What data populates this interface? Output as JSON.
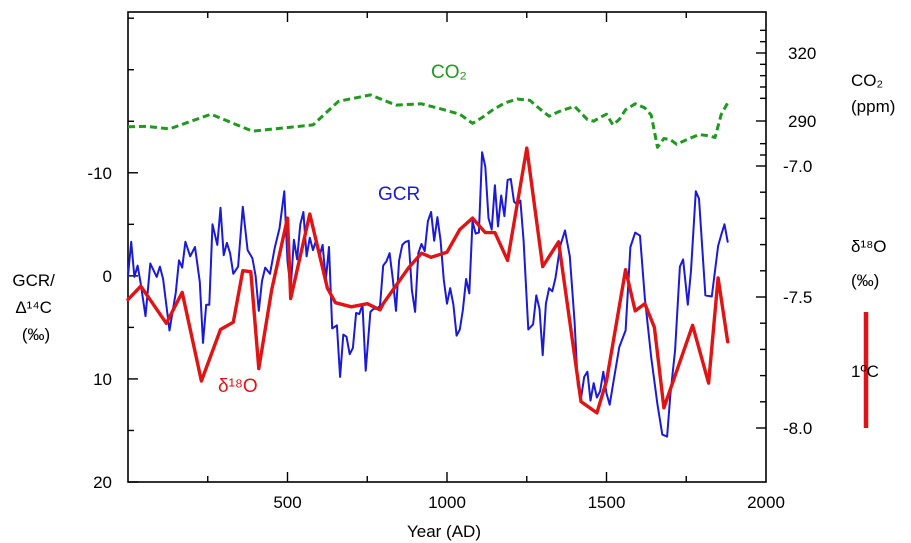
{
  "chart_data": {
    "type": "line",
    "x_axis": {
      "label": "Year (AD)",
      "range": [
        0,
        2000
      ],
      "ticks": [
        500,
        1000,
        1500,
        2000
      ],
      "tick_labels": [
        "500",
        "1000",
        "1500",
        "2000"
      ],
      "minor_step": 250
    },
    "left_axis": {
      "label_lines": [
        "GCR/",
        "Δ¹⁴C",
        "(‰)"
      ],
      "range": [
        20,
        -25.6
      ],
      "inverted": true,
      "ticks": [
        -10,
        0,
        10,
        20
      ],
      "tick_labels": [
        "-10",
        "0",
        "10",
        "20"
      ],
      "minor_step": 5
    },
    "right_axis_co2": {
      "label_lines": [
        "CO₂",
        "(ppm)"
      ],
      "ticks": [
        290,
        320
      ],
      "tick_labels": [
        "290",
        "320"
      ],
      "minor_ticks": [
        275,
        280,
        300,
        305,
        310,
        315,
        325,
        330
      ]
    },
    "right_axis_d18o": {
      "label_lines": [
        "δ¹⁸O",
        "(‰)"
      ],
      "ticks": [
        -8.0,
        -7.5,
        -7.0
      ],
      "tick_labels": [
        "-8.0",
        "-7.5",
        "-7.0"
      ],
      "minor_ticks": [
        -7.9,
        -7.8,
        -7.7,
        -7.6,
        -7.4,
        -7.3,
        -7.2,
        -7.1
      ]
    },
    "scale_bar": {
      "label": "1ºC"
    },
    "series": [
      {
        "name": "GCR",
        "inline_label": "GCR",
        "color": "#1a1ad8",
        "style": "solid",
        "axis": "left",
        "x": [
          0,
          10,
          20,
          30,
          40,
          55,
          70,
          90,
          100,
          110,
          130,
          150,
          160,
          170,
          180,
          195,
          210,
          225,
          235,
          245,
          255,
          265,
          280,
          290,
          300,
          310,
          320,
          330,
          345,
          360,
          375,
          390,
          400,
          410,
          420,
          430,
          445,
          460,
          475,
          490,
          500,
          510,
          520,
          530,
          540,
          550,
          560,
          570,
          580,
          590,
          600,
          610,
          620,
          630,
          640,
          655,
          665,
          675,
          685,
          695,
          705,
          715,
          725,
          735,
          745,
          760,
          770,
          780,
          790,
          800,
          810,
          820,
          830,
          840,
          850,
          860,
          870,
          880,
          890,
          900,
          910,
          920,
          930,
          940,
          950,
          960,
          970,
          980,
          990,
          1000,
          1010,
          1020,
          1030,
          1040,
          1050,
          1060,
          1070,
          1080,
          1090,
          1100,
          1110,
          1120,
          1130,
          1140,
          1150,
          1160,
          1170,
          1180,
          1190,
          1200,
          1210,
          1220,
          1230,
          1240,
          1255,
          1270,
          1280,
          1290,
          1300,
          1310,
          1320,
          1330,
          1340,
          1355,
          1370,
          1385,
          1400,
          1410,
          1420,
          1430,
          1440,
          1450,
          1460,
          1470,
          1480,
          1490,
          1500,
          1510,
          1520,
          1540,
          1560,
          1575,
          1590,
          1605,
          1620,
          1640,
          1660,
          1675,
          1690,
          1700,
          1715,
          1730,
          1740,
          1755,
          1765,
          1780,
          1790,
          1810,
          1830,
          1850,
          1860,
          1870,
          1880
        ],
        "values": [
          0,
          -3.3,
          0.1,
          -1,
          0.8,
          3.9,
          -1.2,
          0.1,
          -0.9,
          0.3,
          5.3,
          1.6,
          -1.5,
          -0.8,
          -3.3,
          -1.9,
          -2.8,
          0.6,
          6.5,
          2.8,
          2.8,
          -5,
          -3,
          -6.6,
          -2,
          -3.2,
          -2.2,
          -0.2,
          -0.9,
          -6.7,
          -2.5,
          -1.7,
          0,
          3.4,
          0.5,
          -0.8,
          -0.2,
          -2.7,
          -4.6,
          -8.2,
          -1.4,
          1.2,
          -3.5,
          -1.6,
          -5,
          -6.2,
          -1.9,
          -3.7,
          -2.5,
          -3.5,
          -1.9,
          -3,
          0.4,
          -2.8,
          5.1,
          4.8,
          9.8,
          5.7,
          5.9,
          7.6,
          7,
          3.6,
          3.7,
          2.8,
          9.2,
          3.5,
          3.2,
          3.2,
          2.9,
          -1,
          -1.4,
          -2.2,
          0.3,
          3.4,
          -1.5,
          -3,
          -3.3,
          -3.4,
          1.4,
          3.5,
          -2.2,
          -3.1,
          -2.4,
          -5.3,
          -6.2,
          -3.4,
          -5.7,
          -3.4,
          0.4,
          2.7,
          1.2,
          2.8,
          5.8,
          5.2,
          3.3,
          0.3,
          1.7,
          -5.3,
          -4.1,
          -4.2,
          -12,
          -10.6,
          -5.6,
          -4.5,
          -8.8,
          -4.8,
          -7.8,
          -5.8,
          -9.3,
          -9.4,
          -7.2,
          -6.9,
          -7.3,
          -3.4,
          5.2,
          4.7,
          1.9,
          3.2,
          7.7,
          2.7,
          1.2,
          1.5,
          0.2,
          -2.9,
          -4.4,
          -1.9,
          4.5,
          10.6,
          11.9,
          9.8,
          9.3,
          12.1,
          10.4,
          11.8,
          11.2,
          9.3,
          11.4,
          12.5,
          10.6,
          6.9,
          5.3,
          -2.8,
          -4.2,
          -3.9,
          2.1,
          7.9,
          12.5,
          15.4,
          15.6,
          11.6,
          7.2,
          -0.9,
          -1.6,
          2.8,
          -0.5,
          -8.2,
          -7.5,
          1.9,
          2,
          -2.9,
          -4,
          -5,
          -3.3
        ]
      },
      {
        "name": "δ18O",
        "inline_label": "δ¹⁸O",
        "color": "#e01414",
        "style": "solid",
        "axis": "left",
        "x": [
          0,
          40,
          120,
          170,
          230,
          290,
          330,
          360,
          385,
          410,
          450,
          500,
          510,
          570,
          625,
          650,
          700,
          750,
          790,
          800,
          880,
          920,
          950,
          1000,
          1040,
          1080,
          1120,
          1150,
          1190,
          1250,
          1300,
          1350,
          1420,
          1470,
          1500,
          1560,
          1590,
          1620,
          1650,
          1680,
          1770,
          1820,
          1850,
          1880
        ],
        "values": [
          2.3,
          1,
          4.6,
          1.6,
          10.2,
          5.2,
          4.5,
          -0.5,
          -0.4,
          9,
          1.4,
          -5.6,
          2.2,
          -6,
          1.2,
          2.6,
          3,
          2.7,
          3.3,
          2.7,
          -0.8,
          -2.2,
          -1.8,
          -2.3,
          -4.5,
          -5.6,
          -4.2,
          -4.2,
          -1.5,
          -12.4,
          -0.9,
          -3.3,
          12.2,
          13.3,
          10.2,
          -0.6,
          3.4,
          2.7,
          5,
          12.8,
          4.8,
          10.4,
          0.2,
          6.4
        ]
      },
      {
        "name": "CO2",
        "inline_label": "CO₂",
        "color": "#1f9a1f",
        "style": "dashed",
        "axis": "co2",
        "x": [
          0,
          60,
          130,
          260,
          390,
          580,
          660,
          760,
          840,
          920,
          990,
          1040,
          1080,
          1110,
          1140,
          1180,
          1220,
          1260,
          1300,
          1320,
          1350,
          1400,
          1440,
          1460,
          1480,
          1500,
          1520,
          1540,
          1560,
          1590,
          1620,
          1640,
          1660,
          1680,
          1700,
          1720,
          1750,
          1790,
          1820,
          1840,
          1860,
          1880
        ],
        "values": [
          287.5,
          287.6,
          286.5,
          293,
          285.5,
          288.3,
          298.7,
          301.5,
          297,
          297.6,
          295,
          293,
          289,
          291.5,
          294.6,
          297.9,
          299.7,
          299.1,
          294.3,
          292.1,
          294.1,
          296.5,
          290.6,
          289.9,
          291.6,
          293,
          288.3,
          290.7,
          295,
          297.6,
          295.8,
          292.6,
          278.4,
          282.3,
          281.8,
          279.7,
          281.7,
          284,
          283.5,
          282.7,
          293,
          298
        ]
      }
    ]
  }
}
